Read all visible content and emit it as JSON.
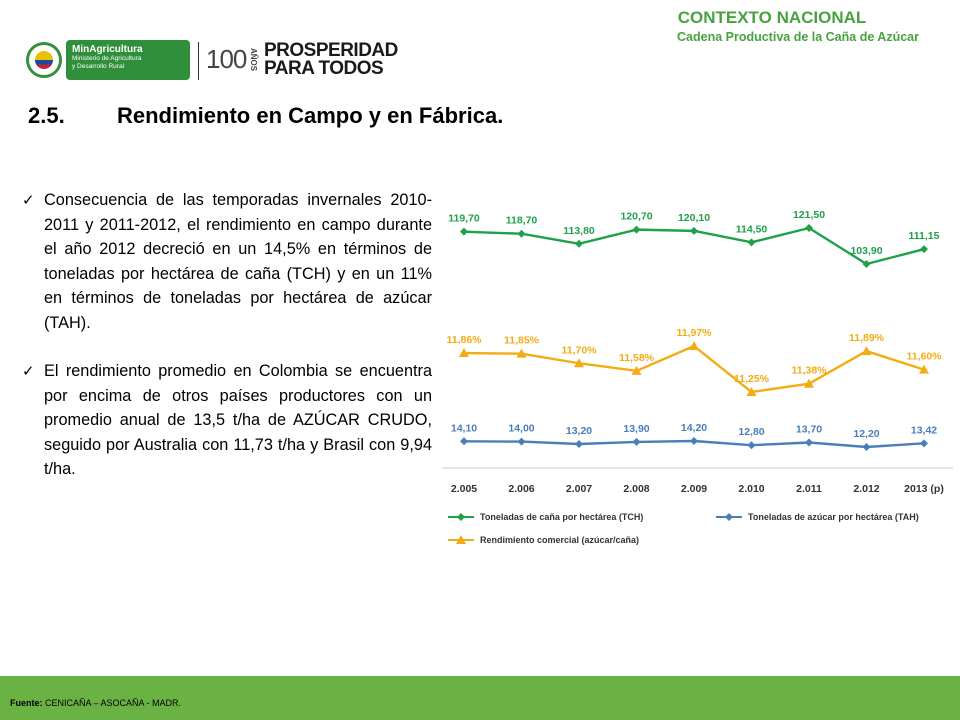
{
  "header": {
    "context_title": "CONTEXTO NACIONAL",
    "context_subtitle": "Cadena Productiva de la Caña de Azúcar",
    "logo": {
      "ministry_name": "MinAgricultura",
      "ministry_line1": "Ministerio de Agricultura",
      "ministry_line2": "y Desarrollo Rural",
      "hundred": "100",
      "years": "AÑOS",
      "slogan_line1": "PROSPERIDAD",
      "slogan_line2": "PARA TODOS"
    }
  },
  "section": {
    "number": "2.5.",
    "title": "Rendimiento en Campo y en Fábrica."
  },
  "bullets": [
    "Consecuencia de las temporadas invernales 2010-2011 y 2011-2012, el rendimiento  en campo durante el año 2012 decreció en un 14,5% en términos de toneladas por hectárea de caña (TCH) y en un 11% en términos de toneladas por hectárea de azúcar (TAH).",
    "El rendimiento promedio en Colombia se encuentra por encima de otros países productores con un promedio anual de 13,5 t/ha de AZÚCAR CRUDO, seguido por Australia con 11,73 t/ha y Brasil con 9,94 t/ha."
  ],
  "footer": {
    "label": "Fuente:",
    "text": " CENICAÑA – ASOCAÑA  -  MADR."
  },
  "chart_data": {
    "type": "line",
    "categories": [
      "2.005",
      "2.006",
      "2.007",
      "2.008",
      "2.009",
      "2.010",
      "2.011",
      "2.012",
      "2013 (p)"
    ],
    "series": [
      {
        "name": "Toneladas de caña por hectárea (TCH)",
        "color": "#1fa04a",
        "marker": "diamond",
        "values": [
          119.7,
          118.7,
          113.8,
          120.7,
          120.1,
          114.5,
          121.5,
          103.9,
          111.15
        ],
        "labels": [
          "119,70",
          "118,70",
          "113,80",
          "120,70",
          "120,10",
          "114,50",
          "121,50",
          "103,90",
          "111,15"
        ]
      },
      {
        "name": "Rendimiento comercial (azúcar/caña)",
        "color": "#f2ac14",
        "marker": "triangle",
        "values": [
          11.86,
          11.85,
          11.7,
          11.58,
          11.97,
          11.25,
          11.38,
          11.89,
          11.6
        ],
        "labels": [
          "11,86%",
          "11,85%",
          "11,70%",
          "11,58%",
          "11,97%",
          "11,25%",
          "11,38%",
          "11,89%",
          "11,60%"
        ]
      },
      {
        "name": "Toneladas de azúcar por hectárea (TAH)",
        "color": "#4a7ebb",
        "marker": "diamond",
        "values": [
          14.1,
          14.0,
          13.2,
          13.9,
          14.2,
          12.8,
          13.7,
          12.2,
          13.42
        ],
        "labels": [
          "14,10",
          "14,00",
          "13,20",
          "13,90",
          "14,20",
          "12,80",
          "13,70",
          "12,20",
          "13,42"
        ]
      }
    ],
    "legend_position": "bottom",
    "grid": false
  }
}
